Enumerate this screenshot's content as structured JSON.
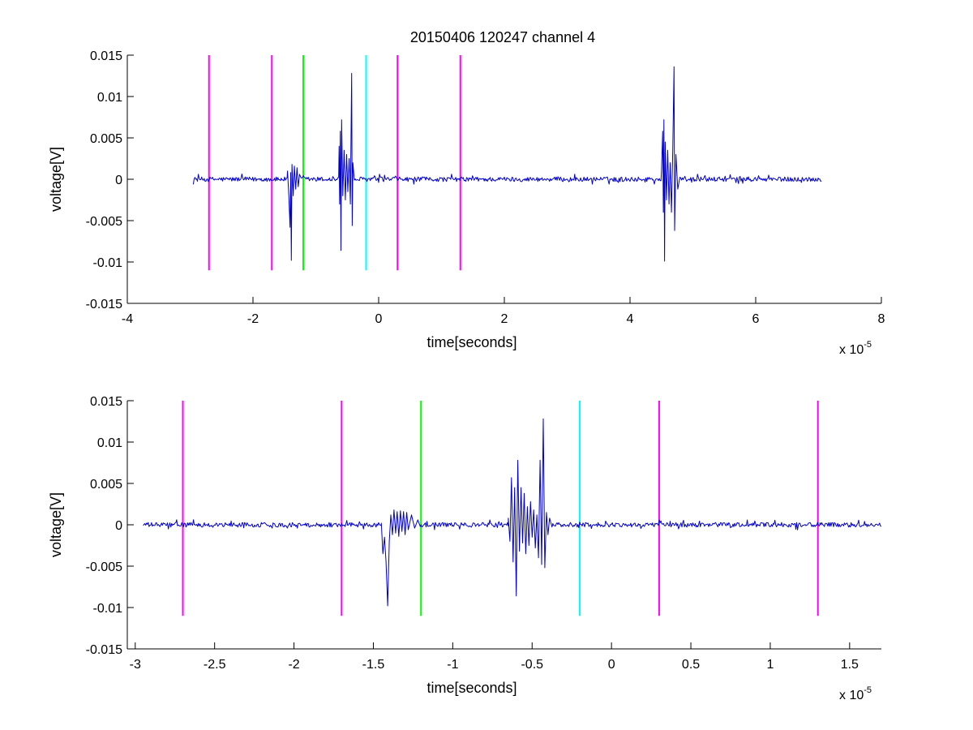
{
  "page": {
    "title": "20150406 120247 channel 4"
  },
  "chart_data": [
    {
      "type": "line",
      "title": "20150406 120247 channel 4",
      "xlabel": "time[seconds]",
      "ylabel": "voltage[V]",
      "x_exponent_base": "x 10",
      "x_exponent_power": "-5",
      "xlim": [
        -4,
        8
      ],
      "ylim": [
        -0.015,
        0.015
      ],
      "x_ticks": [
        -4,
        -2,
        0,
        2,
        4,
        6,
        8
      ],
      "x_tick_labels": [
        "-4",
        "-2",
        "0",
        "2",
        "4",
        "6",
        "8"
      ],
      "y_ticks": [
        -0.015,
        -0.01,
        -0.005,
        0,
        0.005,
        0.01,
        0.015
      ],
      "y_tick_labels": [
        "-0.015",
        "-0.01",
        "-0.005",
        "0",
        "0.005",
        "0.01",
        "0.015"
      ],
      "grid": false,
      "series": [
        {
          "color": "#0000cc",
          "kind": "noise-trace",
          "x_range": [
            -2.95,
            7.05
          ],
          "noise_amplitude": 0.0004,
          "bursts": [
            {
              "start": -1.45,
              "end": -1.25,
              "points": [
                [
                  -1.45,
                  0.001
                ],
                [
                  -1.43,
                  -0.002
                ],
                [
                  -1.41,
                  -0.0058
                ],
                [
                  -1.4,
                  0.0008
                ],
                [
                  -1.39,
                  -0.0098
                ],
                [
                  -1.38,
                  0.0018
                ],
                [
                  -1.36,
                  -0.002
                ],
                [
                  -1.34,
                  0.0016
                ],
                [
                  -1.32,
                  -0.0012
                ],
                [
                  -1.3,
                  0.0014
                ],
                [
                  -1.28,
                  -0.0009
                ],
                [
                  -1.26,
                  0.0006
                ]
              ]
            },
            {
              "start": -0.63,
              "end": -0.4,
              "points": [
                [
                  -0.63,
                  0.004
                ],
                [
                  -0.62,
                  -0.003
                ],
                [
                  -0.61,
                  0.0058
                ],
                [
                  -0.6,
                  -0.0086
                ],
                [
                  -0.59,
                  0.0072
                ],
                [
                  -0.57,
                  -0.002
                ],
                [
                  -0.55,
                  0.0035
                ],
                [
                  -0.53,
                  -0.0025
                ],
                [
                  -0.51,
                  0.003
                ],
                [
                  -0.49,
                  -0.0015
                ],
                [
                  -0.47,
                  0.0025
                ],
                [
                  -0.45,
                  -0.003
                ],
                [
                  -0.43,
                  0.0128
                ],
                [
                  -0.42,
                  -0.0056
                ],
                [
                  -0.41,
                  0.002
                ]
              ]
            },
            {
              "start": 4.5,
              "end": 4.78,
              "points": [
                [
                  4.5,
                  0.001
                ],
                [
                  4.52,
                  0.0058
                ],
                [
                  4.53,
                  -0.004
                ],
                [
                  4.54,
                  0.0072
                ],
                [
                  4.55,
                  -0.0099
                ],
                [
                  4.56,
                  0.0045
                ],
                [
                  4.58,
                  -0.0025
                ],
                [
                  4.6,
                  0.0035
                ],
                [
                  4.62,
                  -0.003
                ],
                [
                  4.64,
                  0.002
                ],
                [
                  4.66,
                  -0.004
                ],
                [
                  4.68,
                  0.0035
                ],
                [
                  4.7,
                  0.0136
                ],
                [
                  4.71,
                  -0.0062
                ],
                [
                  4.73,
                  0.003
                ],
                [
                  4.76,
                  -0.0012
                ]
              ]
            }
          ]
        }
      ],
      "markers": [
        {
          "x": -2.7,
          "color": "#ff00ff"
        },
        {
          "x": -1.7,
          "color": "#ff00ff"
        },
        {
          "x": -1.2,
          "color": "#00ff00"
        },
        {
          "x": -0.2,
          "color": "#00ffff"
        },
        {
          "x": 0.3,
          "color": "#ff00ff"
        },
        {
          "x": 1.3,
          "color": "#ff00ff"
        }
      ],
      "marker_y_range": [
        -0.011,
        0.015
      ]
    },
    {
      "type": "line",
      "title": "",
      "xlabel": "time[seconds]",
      "ylabel": "voltage[V]",
      "x_exponent_base": "x 10",
      "x_exponent_power": "-5",
      "xlim": [
        -3.05,
        1.7
      ],
      "ylim": [
        -0.015,
        0.015
      ],
      "x_ticks": [
        -3,
        -2.5,
        -2,
        -1.5,
        -1,
        -0.5,
        0,
        0.5,
        1,
        1.5
      ],
      "x_tick_labels": [
        "-3",
        "-2.5",
        "-2",
        "-1.5",
        "-1",
        "-0.5",
        "0",
        "0.5",
        "1",
        "1.5"
      ],
      "y_ticks": [
        -0.015,
        -0.01,
        -0.005,
        0,
        0.005,
        0.01,
        0.015
      ],
      "y_tick_labels": [
        "-0.015",
        "-0.01",
        "-0.005",
        "0",
        "0.005",
        "0.01",
        "0.015"
      ],
      "grid": false,
      "series": [
        {
          "color": "#0000cc",
          "kind": "noise-trace",
          "x_range": [
            -2.95,
            1.7
          ],
          "noise_amplitude": 0.0004,
          "bursts": [
            {
              "start": -1.45,
              "end": -1.21,
              "points": [
                [
                  -1.45,
                  0.0002
                ],
                [
                  -1.44,
                  -0.0035
                ],
                [
                  -1.43,
                  -0.0015
                ],
                [
                  -1.42,
                  -0.0045
                ],
                [
                  -1.41,
                  -0.0098
                ],
                [
                  -1.4,
                  -0.002
                ],
                [
                  -1.39,
                  0.0012
                ],
                [
                  -1.38,
                  -0.0012
                ],
                [
                  -1.37,
                  0.0018
                ],
                [
                  -1.36,
                  -0.001
                ],
                [
                  -1.35,
                  0.0016
                ],
                [
                  -1.34,
                  -0.0014
                ],
                [
                  -1.33,
                  0.0017
                ],
                [
                  -1.32,
                  -0.0008
                ],
                [
                  -1.31,
                  0.0016
                ],
                [
                  -1.3,
                  -0.0012
                ],
                [
                  -1.29,
                  0.0015
                ],
                [
                  -1.28,
                  -0.0006
                ],
                [
                  -1.26,
                  0.0012
                ],
                [
                  -1.24,
                  -0.0004
                ],
                [
                  -1.22,
                  0.0006
                ]
              ]
            },
            {
              "start": -0.65,
              "end": -0.38,
              "points": [
                [
                  -0.65,
                  0.0008
                ],
                [
                  -0.64,
                  -0.002
                ],
                [
                  -0.63,
                  0.0057
                ],
                [
                  -0.62,
                  -0.0045
                ],
                [
                  -0.61,
                  0.0045
                ],
                [
                  -0.6,
                  -0.0086
                ],
                [
                  -0.59,
                  0.0078
                ],
                [
                  -0.58,
                  -0.0032
                ],
                [
                  -0.57,
                  0.0045
                ],
                [
                  -0.56,
                  -0.0022
                ],
                [
                  -0.55,
                  0.0038
                ],
                [
                  -0.54,
                  -0.0035
                ],
                [
                  -0.53,
                  0.0022
                ],
                [
                  -0.52,
                  -0.0025
                ],
                [
                  -0.51,
                  0.0028
                ],
                [
                  -0.5,
                  -0.0015
                ],
                [
                  -0.49,
                  0.0018
                ],
                [
                  -0.48,
                  -0.0028
                ],
                [
                  -0.47,
                  0.0012
                ],
                [
                  -0.46,
                  -0.004
                ],
                [
                  -0.45,
                  0.0078
                ],
                [
                  -0.44,
                  -0.0048
                ],
                [
                  -0.43,
                  0.0128
                ],
                [
                  -0.42,
                  -0.0052
                ],
                [
                  -0.41,
                  0.0015
                ],
                [
                  -0.4,
                  -0.0012
                ],
                [
                  -0.39,
                  0.0008
                ]
              ]
            }
          ]
        }
      ],
      "markers": [
        {
          "x": -2.7,
          "color": "#ff00ff"
        },
        {
          "x": -1.7,
          "color": "#ff00ff"
        },
        {
          "x": -1.2,
          "color": "#00ff00"
        },
        {
          "x": -0.2,
          "color": "#00ffff"
        },
        {
          "x": 0.3,
          "color": "#ff00ff"
        },
        {
          "x": 1.3,
          "color": "#ff00ff"
        }
      ],
      "marker_y_range": [
        -0.011,
        0.015
      ]
    }
  ]
}
